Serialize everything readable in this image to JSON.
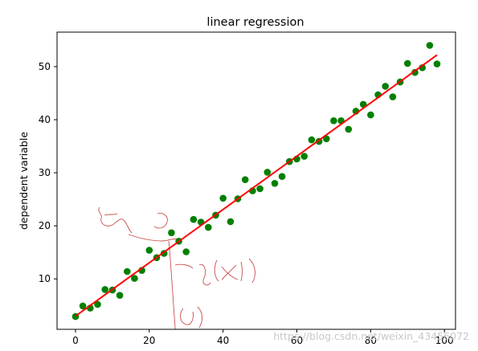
{
  "chart_data": {
    "type": "scatter",
    "title": "linear regression",
    "xlabel": "",
    "ylabel": "dependent variable",
    "xlim": [
      -5,
      103
    ],
    "ylim": [
      0.5,
      56.5
    ],
    "x_ticks": [
      0,
      20,
      40,
      60,
      80,
      100
    ],
    "y_ticks": [
      10,
      20,
      30,
      40,
      50
    ],
    "grid": false,
    "points": {
      "color": "#008000",
      "x": [
        0,
        2,
        4,
        6,
        8,
        10,
        12,
        14,
        16,
        18,
        20,
        22,
        24,
        26,
        28,
        30,
        32,
        34,
        36,
        38,
        40,
        42,
        44,
        46,
        48,
        50,
        52,
        54,
        56,
        58,
        60,
        62,
        64,
        66,
        68,
        70,
        72,
        74,
        76,
        78,
        80,
        82,
        84,
        86,
        88,
        90,
        92,
        94,
        96,
        98
      ],
      "y": [
        2.9,
        4.9,
        4.5,
        5.2,
        8.0,
        7.9,
        6.9,
        11.4,
        10.1,
        11.6,
        15.4,
        14.0,
        14.8,
        18.7,
        17.1,
        15.1,
        21.2,
        20.7,
        19.7,
        22.0,
        25.2,
        20.8,
        25.1,
        28.7,
        26.6,
        27.0,
        30.1,
        28.0,
        29.3,
        32.1,
        32.6,
        33.1,
        36.2,
        35.9,
        36.4,
        39.8,
        39.8,
        38.2,
        41.6,
        42.9,
        40.9,
        44.7,
        46.3,
        44.3,
        47.1,
        50.6,
        48.9,
        49.8,
        54.0,
        50.5
      ]
    },
    "fit_line": {
      "color": "#ff0000",
      "x": [
        0,
        98
      ],
      "y": [
        3.0,
        52.2
      ]
    }
  },
  "watermark": "https://blog.csdn.net/weixin_43456072"
}
